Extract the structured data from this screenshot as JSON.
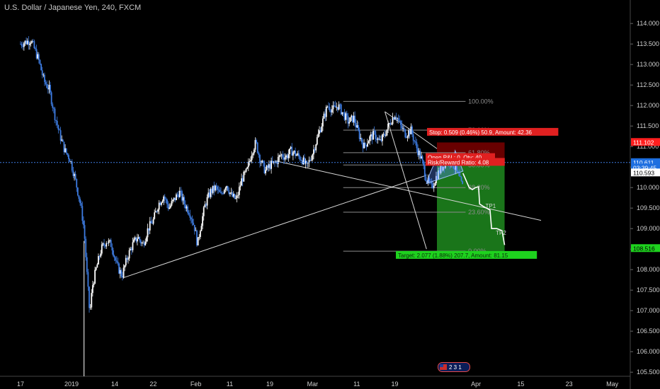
{
  "header": {
    "title": "U.S. Dollar / Japanese Yen, 240, FXCM"
  },
  "chart_data": {
    "type": "candlestick",
    "symbol": "USDJPY",
    "interval": "240",
    "source": "FXCM",
    "ylim": [
      105.4,
      114.4
    ],
    "y_ticks": [
      105.5,
      106.0,
      106.5,
      107.0,
      107.5,
      108.0,
      108.5,
      109.0,
      109.5,
      110.0,
      110.5,
      111.0,
      111.5,
      112.0,
      112.5,
      113.0,
      113.5,
      114.0
    ],
    "y_tick_labels": [
      "105.500",
      "106.000",
      "106.500",
      "107.000",
      "107.500",
      "108.000",
      "108.500",
      "109.000",
      "109.500",
      "110.000",
      "110.500",
      "111.000",
      "111.500",
      "112.000",
      "112.500",
      "113.000",
      "113.500",
      "114.000"
    ],
    "x_ticks": [
      {
        "label": "17",
        "pos": 0.0
      },
      {
        "label": "2019",
        "pos": 0.098
      },
      {
        "label": "14",
        "pos": 0.181
      },
      {
        "label": "22",
        "pos": 0.255
      },
      {
        "label": "Feb",
        "pos": 0.337
      },
      {
        "label": "11",
        "pos": 0.402
      },
      {
        "label": "19",
        "pos": 0.479
      },
      {
        "label": "Mar",
        "pos": 0.561
      },
      {
        "label": "11",
        "pos": 0.646
      },
      {
        "label": "19",
        "pos": 0.719
      },
      {
        "label": "Apr",
        "pos": 0.875
      },
      {
        "label": "15",
        "pos": 0.961
      },
      {
        "label": "23",
        "pos": 1.054
      },
      {
        "label": "May",
        "pos": 1.137
      }
    ],
    "price_path": [
      [
        0.0,
        113.5
      ],
      [
        0.02,
        113.6
      ],
      [
        0.035,
        113.1
      ],
      [
        0.045,
        112.6
      ],
      [
        0.055,
        112.4
      ],
      [
        0.065,
        111.8
      ],
      [
        0.075,
        111.3
      ],
      [
        0.085,
        110.9
      ],
      [
        0.095,
        110.7
      ],
      [
        0.105,
        110.2
      ],
      [
        0.115,
        109.6
      ],
      [
        0.122,
        109.0
      ],
      [
        0.128,
        107.8
      ],
      [
        0.133,
        106.9
      ],
      [
        0.138,
        107.6
      ],
      [
        0.145,
        108.0
      ],
      [
        0.155,
        108.5
      ],
      [
        0.165,
        108.7
      ],
      [
        0.175,
        108.6
      ],
      [
        0.185,
        108.1
      ],
      [
        0.195,
        107.85
      ],
      [
        0.205,
        108.3
      ],
      [
        0.215,
        108.6
      ],
      [
        0.225,
        108.8
      ],
      [
        0.235,
        108.6
      ],
      [
        0.245,
        109.0
      ],
      [
        0.255,
        109.2
      ],
      [
        0.265,
        109.6
      ],
      [
        0.275,
        109.8
      ],
      [
        0.285,
        109.5
      ],
      [
        0.295,
        109.7
      ],
      [
        0.305,
        109.9
      ],
      [
        0.315,
        109.6
      ],
      [
        0.325,
        109.4
      ],
      [
        0.335,
        109.0
      ],
      [
        0.34,
        108.6
      ],
      [
        0.345,
        109.0
      ],
      [
        0.355,
        109.6
      ],
      [
        0.365,
        109.9
      ],
      [
        0.375,
        110.0
      ],
      [
        0.385,
        109.8
      ],
      [
        0.395,
        110.1
      ],
      [
        0.405,
        109.8
      ],
      [
        0.415,
        109.7
      ],
      [
        0.425,
        110.2
      ],
      [
        0.435,
        110.4
      ],
      [
        0.445,
        110.9
      ],
      [
        0.452,
        111.1
      ],
      [
        0.46,
        110.7
      ],
      [
        0.47,
        110.4
      ],
      [
        0.48,
        110.55
      ],
      [
        0.49,
        110.6
      ],
      [
        0.5,
        110.8
      ],
      [
        0.51,
        110.75
      ],
      [
        0.52,
        110.9
      ],
      [
        0.53,
        110.8
      ],
      [
        0.54,
        110.7
      ],
      [
        0.55,
        110.5
      ],
      [
        0.56,
        110.8
      ],
      [
        0.57,
        111.2
      ],
      [
        0.58,
        111.6
      ],
      [
        0.59,
        112.0
      ],
      [
        0.6,
        111.9
      ],
      [
        0.61,
        112.0
      ],
      [
        0.62,
        111.8
      ],
      [
        0.63,
        111.6
      ],
      [
        0.64,
        111.7
      ],
      [
        0.65,
        111.3
      ],
      [
        0.66,
        111.0
      ],
      [
        0.67,
        111.2
      ],
      [
        0.68,
        111.3
      ],
      [
        0.69,
        111.1
      ],
      [
        0.7,
        111.3
      ],
      [
        0.71,
        111.6
      ],
      [
        0.72,
        111.8
      ],
      [
        0.73,
        111.5
      ],
      [
        0.74,
        111.3
      ],
      [
        0.75,
        111.4
      ],
      [
        0.76,
        111.0
      ],
      [
        0.77,
        110.7
      ],
      [
        0.78,
        110.2
      ],
      [
        0.79,
        110.0
      ],
      [
        0.8,
        110.3
      ],
      [
        0.81,
        110.5
      ],
      [
        0.82,
        110.7
      ],
      [
        0.83,
        110.6
      ],
      [
        0.84,
        110.3
      ],
      [
        0.85,
        110.0
      ]
    ],
    "projection_path": [
      [
        0.85,
        110.35
      ],
      [
        0.862,
        110.0
      ],
      [
        0.868,
        109.95
      ],
      [
        0.874,
        110.0
      ],
      [
        0.88,
        110.02
      ],
      [
        0.882,
        109.6
      ],
      [
        0.888,
        109.55
      ],
      [
        0.895,
        109.5
      ],
      [
        0.902,
        109.45
      ],
      [
        0.905,
        109.0
      ],
      [
        0.915,
        109.0
      ],
      [
        0.925,
        108.95
      ],
      [
        0.93,
        108.6
      ]
    ],
    "fib_levels": [
      {
        "label": "100.00%",
        "price": 112.1
      },
      {
        "label": "78.60%",
        "price": 111.4
      },
      {
        "label": "61.80%",
        "price": 110.85
      },
      {
        "label": "50.00%",
        "price": 110.55
      },
      {
        "label": "38.20%",
        "price": 110.0
      },
      {
        "label": "23.60%",
        "price": 109.4
      },
      {
        "label": "0.00%",
        "price": 108.45
      }
    ],
    "trendlines": [
      {
        "from": [
          0.197,
          107.8
        ],
        "to": [
          0.78,
          110.3
        ]
      },
      {
        "from": [
          0.49,
          110.65
        ],
        "to": [
          1.0,
          109.2
        ]
      },
      {
        "from": [
          0.7,
          111.85
        ],
        "to": [
          0.78,
          108.5
        ]
      },
      {
        "from": [
          0.7,
          111.85
        ],
        "to": [
          0.8,
          110.95
        ]
      }
    ],
    "annotations": {
      "tp1": "TP1",
      "tp2": "TP2",
      "stop_text": "Stop: 0.509 (0.46%) 50.9, Amount: 42.36",
      "entry_text_1": "Open P&L: 0, Qty: 40",
      "entry_text_2": "Risk/Reward Ratio: 4.08",
      "target_text": "Target: 2.077 (1.88%) 207.7, Amount: 81.15"
    },
    "price_tags": [
      {
        "label": "111.102",
        "price": 111.102,
        "color": "#ff1e1e"
      },
      {
        "label": "110.611",
        "price": 110.611,
        "color": "#1e6fe0"
      },
      {
        "label": "03:39:45",
        "price": 110.48,
        "color": "#1e6fe0"
      },
      {
        "label": "110.593",
        "price": 110.36,
        "color": "#ffffff"
      },
      {
        "label": "108.516",
        "price": 108.516,
        "color": "#1ed21e"
      }
    ],
    "current_price": 110.611,
    "colors": {
      "up": "#ffffff",
      "down": "#3d7be0",
      "stop_zone": "#7a0000",
      "target_zone": "#1f8a1f",
      "fib_line": "#8c8c8c",
      "axis_text": "#d0d0d0"
    },
    "badge": "2 3 1"
  }
}
